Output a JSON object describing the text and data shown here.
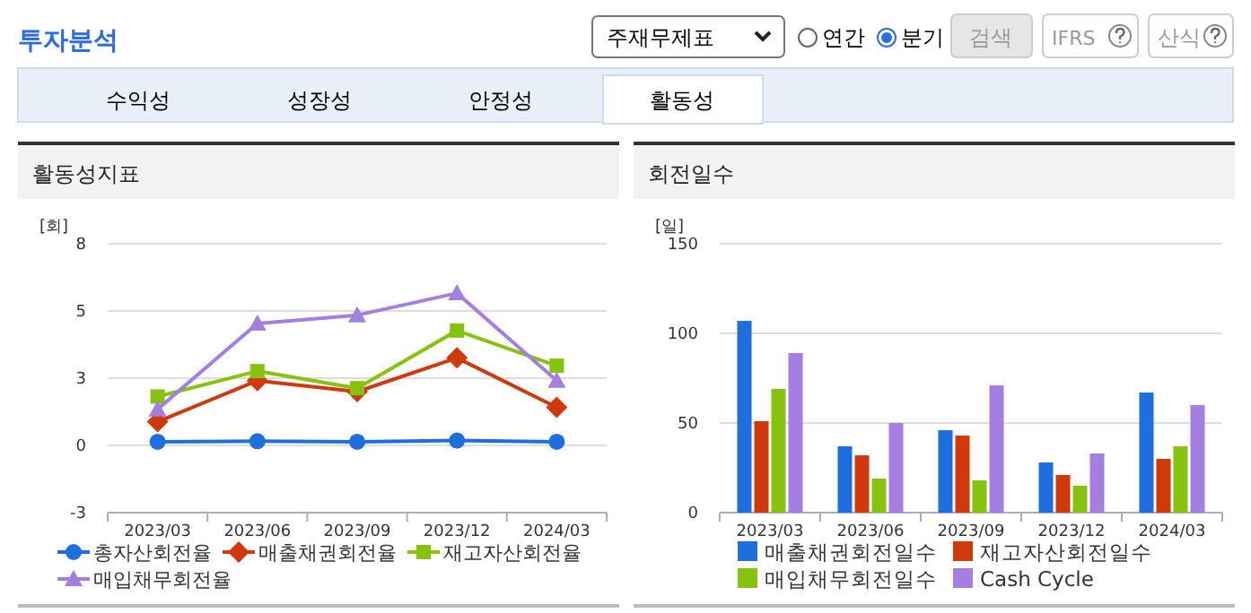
{
  "chart_data": [
    {
      "type": "other",
      "title": "투자분석",
      "annotations": [
        "주재무제표",
        "연간",
        "분기",
        "검색",
        "IFRS",
        "산식",
        "수익성",
        "성장성",
        "안정성",
        "활동성"
      ]
    },
    {
      "type": "line",
      "title": "활동성지표",
      "ylabel": "[회]",
      "categories": [
        "2023/03",
        "2023/06",
        "2023/09",
        "2023/12",
        "2024/03"
      ],
      "ylim": [
        -2.75,
        8.25
      ],
      "yticks": [
        {
          "value": -2.75,
          "label": "-3"
        },
        0,
        {
          "value": 2.75,
          "label": "3"
        },
        {
          "value": 5.5,
          "label": "5"
        },
        {
          "value": 8.25,
          "label": "8"
        }
      ],
      "grid": "y",
      "legend": "bottom",
      "series": [
        {
          "name": "총자산회전율",
          "color": "#1f6ee0",
          "marker": "circle",
          "values": [
            0.15,
            0.17,
            0.15,
            0.2,
            0.15
          ]
        },
        {
          "name": "매출채권회전율",
          "color": "#d03a0a",
          "marker": "diamond",
          "values": [
            0.97,
            2.65,
            2.2,
            3.58,
            1.56
          ]
        },
        {
          "name": "재고자산회전율",
          "color": "#86c20e",
          "marker": "square",
          "values": [
            2.0,
            3.04,
            2.34,
            4.7,
            3.26
          ]
        },
        {
          "name": "매입채무회전율",
          "color": "#a47ee0",
          "marker": "triangle",
          "values": [
            1.48,
            4.99,
            5.33,
            6.23,
            2.65
          ]
        }
      ]
    },
    {
      "type": "bar",
      "title": "회전일수",
      "ylabel": "[일]",
      "categories": [
        "2023/03",
        "2023/06",
        "2023/09",
        "2023/12",
        "2024/03"
      ],
      "ylim": [
        0,
        150
      ],
      "yticks": [
        0,
        50,
        100,
        150
      ],
      "grid": "y",
      "legend": "bottom",
      "series": [
        {
          "name": "매출채권회전일수",
          "color": "#1f6ee0",
          "values": [
            107,
            37,
            46,
            28,
            67
          ]
        },
        {
          "name": "재고자산회전일수",
          "color": "#d03a0a",
          "values": [
            51,
            32,
            43,
            21,
            30
          ]
        },
        {
          "name": "매입채무회전일수",
          "color": "#86c20e",
          "values": [
            69,
            19,
            18,
            15,
            37
          ]
        },
        {
          "name": "Cash Cycle",
          "color": "#a47ee0",
          "values": [
            89,
            50,
            71,
            33,
            60
          ]
        }
      ]
    }
  ]
}
